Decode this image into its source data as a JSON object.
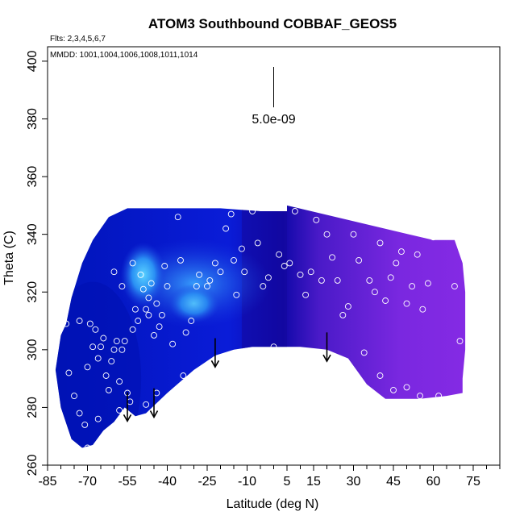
{
  "chart_data": {
    "type": "heatmap",
    "title": "ATOM3 Southbound COBBAF_GEOS5",
    "flights_note": "Flts: 2,3,4,5,6,7",
    "dates_note": "MMDD: 1001,1004,1006,1008,1011,1014",
    "xlabel": "Latitude (deg N)",
    "ylabel": "Theta (C)",
    "xlim": [
      -85,
      85
    ],
    "ylim": [
      260,
      405
    ],
    "x_major_ticks": [
      -85,
      -70,
      -55,
      -40,
      -25,
      -10,
      5,
      15,
      30,
      45,
      60,
      75
    ],
    "x_minor_ticks": [
      -80,
      -75,
      -65,
      -60,
      -50,
      -45,
      -35,
      -30,
      -20,
      -15,
      -5,
      0,
      10,
      20,
      25,
      35,
      40,
      50,
      55,
      65,
      70,
      80,
      85
    ],
    "y_ticks": [
      260,
      280,
      300,
      320,
      340,
      360,
      380,
      400
    ],
    "scale_label": "5.0e-09",
    "scale_bar": {
      "x": 0,
      "y_top": 398,
      "y_bottom": 384
    },
    "colors": {
      "south_blue": "#0010c0",
      "bright_blue": "#3aa8ff",
      "cyan": "#55ccff",
      "north_purple": "#8a2be2",
      "mid_navy": "#1a0fa0"
    },
    "boundary": [
      [
        -78,
        309
      ],
      [
        -76,
        318
      ],
      [
        -72,
        330
      ],
      [
        -68,
        338
      ],
      [
        -62,
        346
      ],
      [
        -55,
        349
      ],
      [
        -20,
        349
      ],
      [
        -5,
        348
      ],
      [
        5,
        348
      ],
      [
        5,
        350
      ],
      [
        60,
        338
      ],
      [
        68,
        338
      ],
      [
        71,
        330
      ],
      [
        72,
        320
      ],
      [
        72,
        300
      ],
      [
        71,
        290
      ],
      [
        71,
        285
      ],
      [
        65,
        284
      ],
      [
        55,
        283
      ],
      [
        48,
        283
      ],
      [
        42,
        283
      ],
      [
        35,
        288
      ],
      [
        28,
        297
      ],
      [
        20,
        300
      ],
      [
        10,
        301
      ],
      [
        0,
        301
      ],
      [
        -8,
        301
      ],
      [
        -15,
        300
      ],
      [
        -22,
        298
      ],
      [
        -30,
        293
      ],
      [
        -40,
        285
      ],
      [
        -48,
        278
      ],
      [
        -52,
        277
      ],
      [
        -56,
        280
      ],
      [
        -60,
        275
      ],
      [
        -64,
        272
      ],
      [
        -68,
        267
      ],
      [
        -72,
        266
      ],
      [
        -76,
        269
      ],
      [
        -80,
        280
      ],
      [
        -82,
        293
      ],
      [
        -80,
        305
      ]
    ],
    "observations": [
      [
        -78,
        309
      ],
      [
        -77,
        292
      ],
      [
        -75,
        284
      ],
      [
        -73,
        310
      ],
      [
        -70,
        294
      ],
      [
        -69,
        309
      ],
      [
        -68,
        301
      ],
      [
        -67,
        307
      ],
      [
        -66,
        297
      ],
      [
        -65,
        301
      ],
      [
        -64,
        304
      ],
      [
        -63,
        291
      ],
      [
        -61,
        296
      ],
      [
        -60,
        300
      ],
      [
        -59,
        303
      ],
      [
        -58,
        289
      ],
      [
        -57,
        300
      ],
      [
        -56,
        303
      ],
      [
        -55,
        285
      ],
      [
        -54,
        282
      ],
      [
        -53,
        307
      ],
      [
        -52,
        314
      ],
      [
        -51,
        310
      ],
      [
        -50,
        326
      ],
      [
        -49,
        321
      ],
      [
        -48,
        314
      ],
      [
        -47,
        312
      ],
      [
        -46,
        323
      ],
      [
        -45,
        305
      ],
      [
        -44,
        316
      ],
      [
        -43,
        308
      ],
      [
        -42,
        312
      ],
      [
        -41,
        329
      ],
      [
        -40,
        322
      ],
      [
        -38,
        302
      ],
      [
        -36,
        346
      ],
      [
        -35,
        331
      ],
      [
        -33,
        306
      ],
      [
        -31,
        310
      ],
      [
        -29,
        322
      ],
      [
        -28,
        326
      ],
      [
        -25,
        322
      ],
      [
        -24,
        324
      ],
      [
        -22,
        330
      ],
      [
        -20,
        327
      ],
      [
        -18,
        342
      ],
      [
        -16,
        347
      ],
      [
        -15,
        331
      ],
      [
        -14,
        319
      ],
      [
        -12,
        335
      ],
      [
        -11,
        327
      ],
      [
        -8,
        348
      ],
      [
        -6,
        337
      ],
      [
        -4,
        322
      ],
      [
        -2,
        325
      ],
      [
        0,
        301
      ],
      [
        2,
        333
      ],
      [
        4,
        329
      ],
      [
        6,
        330
      ],
      [
        8,
        348
      ],
      [
        10,
        326
      ],
      [
        12,
        319
      ],
      [
        14,
        327
      ],
      [
        16,
        345
      ],
      [
        18,
        324
      ],
      [
        20,
        340
      ],
      [
        22,
        332
      ],
      [
        24,
        324
      ],
      [
        26,
        312
      ],
      [
        28,
        315
      ],
      [
        30,
        340
      ],
      [
        32,
        331
      ],
      [
        34,
        299
      ],
      [
        36,
        324
      ],
      [
        38,
        320
      ],
      [
        40,
        337
      ],
      [
        42,
        317
      ],
      [
        44,
        325
      ],
      [
        46,
        330
      ],
      [
        48,
        334
      ],
      [
        50,
        316
      ],
      [
        52,
        322
      ],
      [
        54,
        333
      ],
      [
        56,
        314
      ],
      [
        58,
        323
      ],
      [
        60,
        339
      ],
      [
        62,
        347
      ],
      [
        64,
        348
      ],
      [
        66,
        340
      ],
      [
        68,
        322
      ],
      [
        70,
        303
      ],
      [
        -71,
        274
      ],
      [
        -66,
        276
      ],
      [
        -62,
        286
      ],
      [
        -58,
        279
      ],
      [
        -48,
        281
      ],
      [
        -44,
        285
      ],
      [
        -39,
        279
      ],
      [
        -34,
        291
      ],
      [
        -30,
        287
      ],
      [
        -27,
        284
      ],
      [
        40,
        291
      ],
      [
        45,
        286
      ],
      [
        50,
        287
      ],
      [
        55,
        284
      ],
      [
        62,
        284
      ],
      [
        -70,
        266
      ],
      [
        -73,
        278
      ],
      [
        -60,
        327
      ],
      [
        -57,
        322
      ],
      [
        -53,
        330
      ],
      [
        -47,
        318
      ]
    ],
    "arrows": [
      -55,
      -45,
      -22,
      20
    ]
  }
}
